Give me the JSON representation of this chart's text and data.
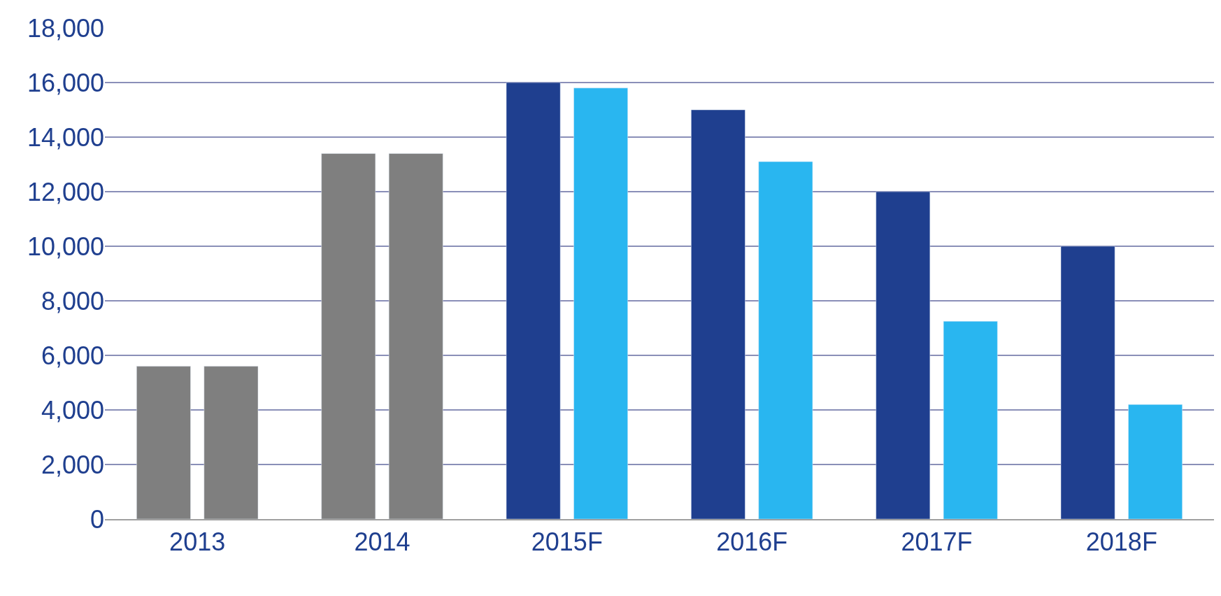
{
  "chart_data": {
    "type": "bar",
    "categories": [
      "2013",
      "2014",
      "2015F",
      "2016F",
      "2017F",
      "2018F"
    ],
    "series": [
      {
        "colors": [
          "#7f7f7f",
          "#7f7f7f",
          "#1f3f8f",
          "#1f3f8f",
          "#1f3f8f",
          "#1f3f8f"
        ],
        "values": [
          5600,
          13400,
          16000,
          15000,
          12000,
          10000
        ]
      },
      {
        "colors": [
          "#7f7f7f",
          "#7f7f7f",
          "#29b6f0",
          "#29b6f0",
          "#29b6f0",
          "#29b6f0"
        ],
        "values": [
          5600,
          13400,
          15800,
          13100,
          7250,
          4200
        ]
      }
    ],
    "ylim": [
      0,
      18000
    ],
    "yticks": [
      {
        "value": 0,
        "label": "0"
      },
      {
        "value": 2000,
        "label": "2,000"
      },
      {
        "value": 4000,
        "label": "4,000"
      },
      {
        "value": 6000,
        "label": "6,000"
      },
      {
        "value": 8000,
        "label": "8,000"
      },
      {
        "value": 10000,
        "label": "10,000"
      },
      {
        "value": 12000,
        "label": "12,000"
      },
      {
        "value": 14000,
        "label": "14,000"
      },
      {
        "value": 16000,
        "label": "16,000"
      },
      {
        "value": 18000,
        "label": "18,000"
      }
    ],
    "grid": "y"
  }
}
